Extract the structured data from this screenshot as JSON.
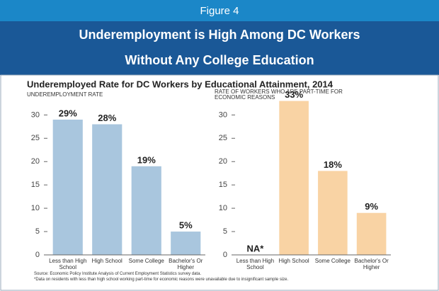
{
  "header": {
    "label": "Figure 4",
    "title": [
      "Underemployment is High Among DC Workers",
      "Without Any College Education"
    ]
  },
  "heading": "Underemployed Rate for DC Workers by Educational Attainment, 2014",
  "chart_data": [
    {
      "type": "bar",
      "title": "UNDEREMPLOYMENT RATE",
      "categories": [
        "Less than High School",
        "High School",
        "Some College",
        "Bachelor's Or Higher"
      ],
      "values": [
        29,
        28,
        19,
        5
      ],
      "value_labels": [
        "29%",
        "28%",
        "19%",
        "5%"
      ],
      "color": "#a9c6de",
      "ylim": [
        0,
        34
      ],
      "yticks": [
        0,
        5,
        10,
        15,
        20,
        25,
        30
      ],
      "grid": false
    },
    {
      "type": "bar",
      "title": "RATE OF WORKERS WHO ARE  PART-TIME FOR ECONOMIC REASONS",
      "categories": [
        "Less than High School",
        "High School",
        "Some College",
        "Bachelor's Or Higher"
      ],
      "values": [
        null,
        33,
        18,
        9
      ],
      "value_labels": [
        "NA*",
        "33%",
        "18%",
        "9%"
      ],
      "color": "#f9d3a4",
      "ylim": [
        0,
        34
      ],
      "yticks": [
        0,
        5,
        10,
        15,
        20,
        25,
        30
      ],
      "grid": false
    }
  ],
  "source": "Source: Economic Policy Institute Analysis of Current Employment Statistics survey data.",
  "note": "*Data  on residents with less than high school working part-time for economic reasons were unavailable due to insignificant sample size."
}
